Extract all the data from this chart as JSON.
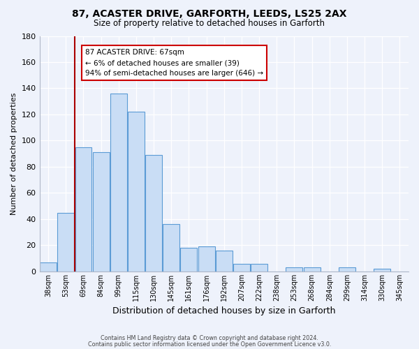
{
  "title1": "87, ACASTER DRIVE, GARFORTH, LEEDS, LS25 2AX",
  "title2": "Size of property relative to detached houses in Garforth",
  "xlabel": "Distribution of detached houses by size in Garforth",
  "ylabel": "Number of detached properties",
  "bar_labels": [
    "38sqm",
    "53sqm",
    "69sqm",
    "84sqm",
    "99sqm",
    "115sqm",
    "130sqm",
    "145sqm",
    "161sqm",
    "176sqm",
    "192sqm",
    "207sqm",
    "222sqm",
    "238sqm",
    "253sqm",
    "268sqm",
    "284sqm",
    "299sqm",
    "314sqm",
    "330sqm",
    "345sqm"
  ],
  "bar_values": [
    7,
    45,
    95,
    91,
    136,
    122,
    89,
    36,
    18,
    19,
    16,
    6,
    6,
    0,
    3,
    3,
    0,
    3,
    0,
    2,
    0
  ],
  "bar_color": "#c9ddf5",
  "bar_edge_color": "#5b9bd5",
  "vline_color": "#aa0000",
  "annotation_text": "87 ACASTER DRIVE: 67sqm\n← 6% of detached houses are smaller (39)\n94% of semi-detached houses are larger (646) →",
  "annotation_box_color": "#ffffff",
  "annotation_box_edge": "#cc0000",
  "ylim": [
    0,
    180
  ],
  "yticks": [
    0,
    20,
    40,
    60,
    80,
    100,
    120,
    140,
    160,
    180
  ],
  "footer1": "Contains HM Land Registry data © Crown copyright and database right 2024.",
  "footer2": "Contains public sector information licensed under the Open Government Licence v3.0.",
  "bg_color": "#eef2fb"
}
